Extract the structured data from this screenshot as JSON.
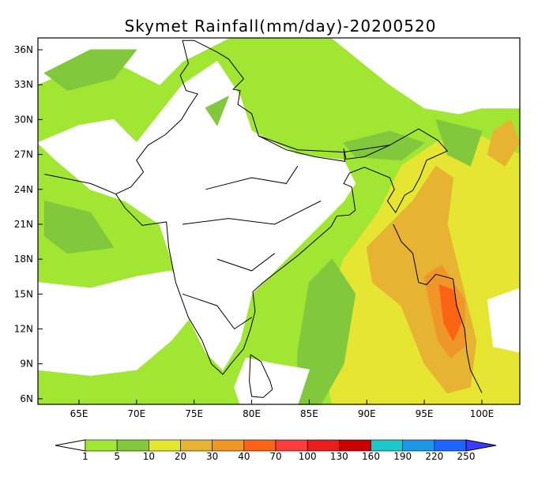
{
  "title": "Skymet Rainfall(mm/day)-20200520",
  "map": {
    "lat_ticks": [
      "36N",
      "33N",
      "30N",
      "27N",
      "24N",
      "21N",
      "18N",
      "15N",
      "12N",
      "9N",
      "6N"
    ],
    "lon_ticks": [
      "65E",
      "70E",
      "75E",
      "80E",
      "85E",
      "90E",
      "95E",
      "100E"
    ]
  },
  "colorbar": {
    "levels": [
      "1",
      "5",
      "10",
      "20",
      "30",
      "40",
      "70",
      "100",
      "130",
      "160",
      "190",
      "220",
      "250"
    ],
    "colors": [
      "#ffffff",
      "#a0e632",
      "#82c83c",
      "#e6e632",
      "#e6b432",
      "#f09628",
      "#fa6414",
      "#fa3c3c",
      "#e61e1e",
      "#c80000",
      "#1ec8c8",
      "#1e96e6",
      "#1e64ff",
      "#3c3cff"
    ]
  }
}
